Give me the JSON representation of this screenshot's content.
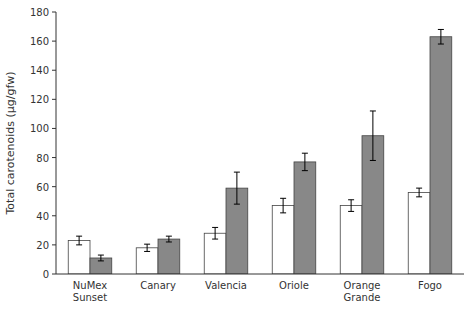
{
  "chart_data": {
    "type": "bar",
    "categories": [
      "NuMex\nSunset",
      "Canary",
      "Valencia",
      "Oriole",
      "Orange\nGrande",
      "Fogo"
    ],
    "series": [
      {
        "color": "#ffffff",
        "values": [
          23,
          18,
          28,
          47,
          47,
          56
        ],
        "errors": [
          3,
          2.5,
          4,
          5,
          4,
          3
        ]
      },
      {
        "color": "#888888",
        "values": [
          11,
          24,
          59,
          77,
          95,
          163
        ],
        "errors": [
          2,
          2,
          11,
          6,
          17,
          5
        ]
      }
    ],
    "y_label": "Total carotenoids (μg/gfw)",
    "ylim": [
      0,
      180
    ],
    "yticks": [
      0,
      20,
      40,
      60,
      80,
      100,
      120,
      140,
      160,
      180
    ],
    "grid": false
  }
}
